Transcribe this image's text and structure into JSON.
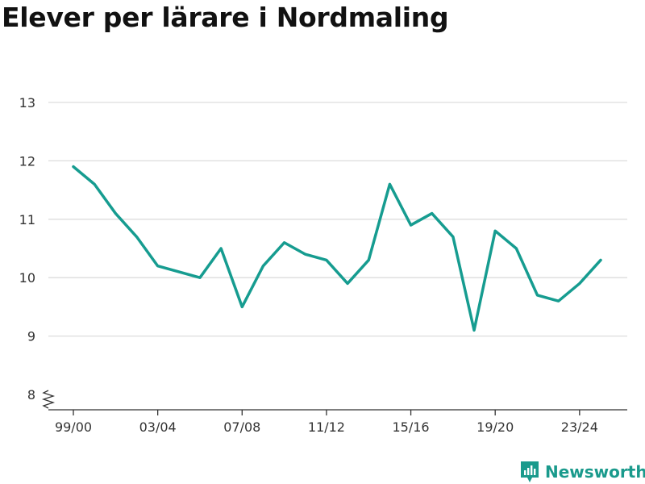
{
  "title": "Elever per lärare i Nordmaling",
  "brand": {
    "name": "Newsworthy",
    "icon": "newsworthy-logo-icon"
  },
  "colors": {
    "line": "#169c90",
    "grid": "#dddddd",
    "axis": "#333333",
    "brand": "#1a9a8c"
  },
  "chart_data": {
    "type": "line",
    "title": "Elever per lärare i Nordmaling",
    "xlabel": "",
    "ylabel": "",
    "x": [
      "99/00",
      "00/01",
      "01/02",
      "02/03",
      "03/04",
      "04/05",
      "05/06",
      "06/07",
      "07/08",
      "08/09",
      "09/10",
      "10/11",
      "11/12",
      "12/13",
      "13/14",
      "14/15",
      "15/16",
      "16/17",
      "17/18",
      "18/19",
      "19/20",
      "20/21",
      "21/22",
      "22/23",
      "23/24",
      "24/25"
    ],
    "values": [
      11.9,
      11.6,
      11.1,
      10.7,
      10.2,
      10.1,
      10.0,
      10.5,
      9.5,
      10.2,
      10.6,
      10.4,
      10.3,
      9.9,
      10.3,
      11.6,
      10.9,
      11.1,
      10.7,
      9.1,
      10.8,
      10.5,
      9.7,
      9.6,
      9.9,
      10.3
    ],
    "x_ticks": [
      "99/00",
      "03/04",
      "07/08",
      "11/12",
      "15/16",
      "19/20",
      "23/24"
    ],
    "y_ticks": [
      8,
      9,
      10,
      11,
      12,
      13
    ],
    "ylim": [
      8,
      13
    ],
    "y_axis_break": true,
    "grid": true,
    "legend": "none"
  }
}
